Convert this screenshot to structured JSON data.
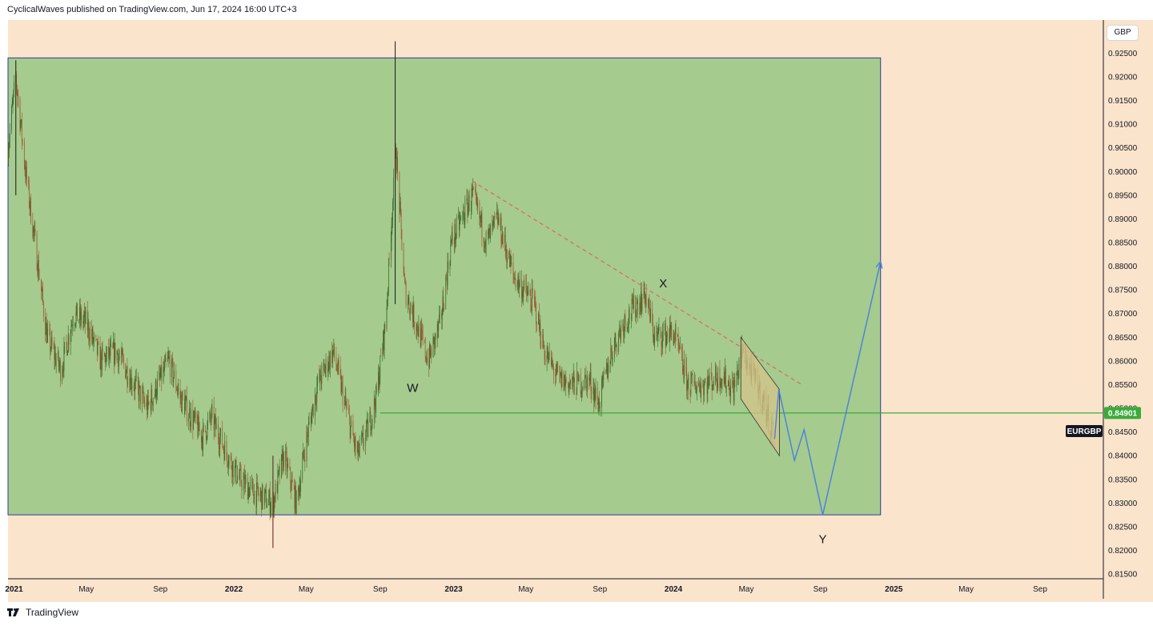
{
  "header": {
    "published_by": "CyclicalWaves published on TradingView.com, Jun 17, 2024 16:00 UTC+3"
  },
  "footer": {
    "brand": "TradingView"
  },
  "price_scale": {
    "currency_button": "GBP"
  },
  "colors": {
    "background": "#fbe4cc",
    "range_box": "#a5cb8e",
    "range_box_border": "#2c3d9e",
    "up_candle": "#2d6b2a",
    "down_candle": "#a0522d",
    "last_price_line": "#3aab3a",
    "trendline": "#e06666",
    "projection": "#4a7fe0",
    "channel_fill": "#d4c48a"
  },
  "chart_data": {
    "type": "candlestick",
    "symbol": "EURGBP",
    "last_price": 0.84901,
    "last_price_label": "0.84901",
    "symbol_label": "EURGBP",
    "ylim": [
      0.814,
      0.932
    ],
    "y_ticks": [
      "0.92500",
      "0.92000",
      "0.91500",
      "0.91000",
      "0.90500",
      "0.90000",
      "0.89500",
      "0.89000",
      "0.88500",
      "0.88000",
      "0.87500",
      "0.87000",
      "0.86500",
      "0.86000",
      "0.85500",
      "0.85000",
      "0.84500",
      "0.84000",
      "0.83500",
      "0.83000",
      "0.82500",
      "0.82000",
      "0.81500"
    ],
    "x_ticks": [
      "2021",
      "May",
      "Sep",
      "2022",
      "May",
      "Sep",
      "2023",
      "May",
      "Sep",
      "2024",
      "May",
      "Sep",
      "2025",
      "May",
      "Sep"
    ],
    "x_tick_dates": [
      "2021-01-01",
      "2021-05-01",
      "2021-09-01",
      "2022-01-01",
      "2022-05-01",
      "2022-09-01",
      "2023-01-01",
      "2023-05-01",
      "2023-09-01",
      "2024-01-01",
      "2024-05-01",
      "2024-09-01",
      "2025-01-01",
      "2025-05-01",
      "2025-09-01"
    ],
    "xlim": [
      "2020-12-22",
      "2025-12-15"
    ],
    "price_path": [
      [
        "2020-12-22",
        0.905
      ],
      [
        "2021-01-04",
        0.92
      ],
      [
        "2021-01-20",
        0.9
      ],
      [
        "2021-02-10",
        0.88
      ],
      [
        "2021-02-25",
        0.865
      ],
      [
        "2021-03-20",
        0.858
      ],
      [
        "2021-04-10",
        0.87
      ],
      [
        "2021-05-01",
        0.868
      ],
      [
        "2021-05-25",
        0.86
      ],
      [
        "2021-06-20",
        0.862
      ],
      [
        "2021-07-20",
        0.855
      ],
      [
        "2021-08-10",
        0.85
      ],
      [
        "2021-09-15",
        0.86
      ],
      [
        "2021-10-05",
        0.852
      ],
      [
        "2021-11-10",
        0.844
      ],
      [
        "2021-11-25",
        0.848
      ],
      [
        "2021-12-15",
        0.842
      ],
      [
        "2022-01-10",
        0.835
      ],
      [
        "2022-02-05",
        0.832
      ],
      [
        "2022-03-07",
        0.83
      ],
      [
        "2022-03-25",
        0.84
      ],
      [
        "2022-04-15",
        0.83
      ],
      [
        "2022-05-01",
        0.843
      ],
      [
        "2022-05-20",
        0.855
      ],
      [
        "2022-06-15",
        0.862
      ],
      [
        "2022-07-10",
        0.848
      ],
      [
        "2022-07-25",
        0.84
      ],
      [
        "2022-08-10",
        0.845
      ],
      [
        "2022-08-25",
        0.852
      ],
      [
        "2022-09-10",
        0.868
      ],
      [
        "2022-09-27",
        0.905
      ],
      [
        "2022-10-12",
        0.875
      ],
      [
        "2022-11-05",
        0.866
      ],
      [
        "2022-11-20",
        0.86
      ],
      [
        "2022-12-10",
        0.868
      ],
      [
        "2022-12-28",
        0.885
      ],
      [
        "2023-02-01",
        0.895
      ],
      [
        "2023-02-25",
        0.885
      ],
      [
        "2023-03-15",
        0.89
      ],
      [
        "2023-04-10",
        0.878
      ],
      [
        "2023-05-15",
        0.872
      ],
      [
        "2023-06-01",
        0.862
      ],
      [
        "2023-06-25",
        0.856
      ],
      [
        "2023-07-20",
        0.855
      ],
      [
        "2023-08-15",
        0.856
      ],
      [
        "2023-08-30",
        0.851
      ],
      [
        "2023-09-20",
        0.862
      ],
      [
        "2023-10-10",
        0.868
      ],
      [
        "2023-11-01",
        0.872
      ],
      [
        "2023-11-15",
        0.874
      ],
      [
        "2023-12-01",
        0.865
      ],
      [
        "2024-01-01",
        0.866
      ],
      [
        "2024-01-25",
        0.855
      ],
      [
        "2024-02-20",
        0.855
      ],
      [
        "2024-03-20",
        0.857
      ],
      [
        "2024-04-10",
        0.854
      ],
      [
        "2024-04-25",
        0.862
      ],
      [
        "2024-05-15",
        0.856
      ],
      [
        "2024-05-31",
        0.851
      ],
      [
        "2024-06-17",
        0.8435
      ]
    ],
    "extremes": [
      {
        "date": "2022-09-26",
        "high": 0.9275,
        "low": 0.872
      },
      {
        "date": "2022-03-07",
        "high": 0.84,
        "low": 0.8205
      },
      {
        "date": "2021-01-04",
        "high": 0.9235,
        "low": 0.895
      }
    ],
    "range_box": {
      "x_from": "2020-12-22",
      "x_to": "2024-12-10",
      "y_low": 0.8275,
      "y_high": 0.924
    },
    "horizontal_line": {
      "x_from": "2022-09-01",
      "y": 0.84901
    },
    "trendline": {
      "from": [
        "2023-02-01",
        0.898
      ],
      "to": [
        "2024-08-01",
        0.855
      ]
    },
    "channel": [
      [
        "2024-04-22",
        0.865
      ],
      [
        "2024-06-25",
        0.854
      ],
      [
        "2024-06-25",
        0.84
      ],
      [
        "2024-04-22",
        0.852
      ]
    ],
    "projection": [
      [
        "2024-06-17",
        0.8435
      ],
      [
        "2024-06-24",
        0.854
      ],
      [
        "2024-07-20",
        0.839
      ],
      [
        "2024-08-05",
        0.8455
      ],
      [
        "2024-09-05",
        0.8275
      ],
      [
        "2024-12-10",
        0.881
      ]
    ],
    "wave_labels": [
      {
        "text": "W",
        "date": "2022-10-25",
        "price": 0.8535
      },
      {
        "text": "X",
        "date": "2023-12-15",
        "price": 0.8755
      },
      {
        "text": "Y",
        "date": "2024-09-05",
        "price": 0.8215
      }
    ]
  }
}
